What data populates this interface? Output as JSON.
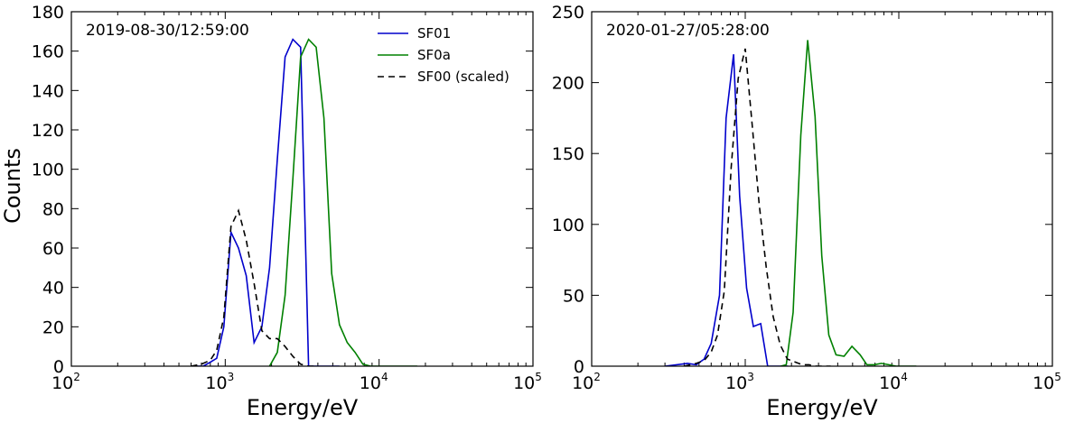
{
  "chart_data": [
    {
      "type": "line",
      "annotation": "2019-08-30/12:59:00",
      "xlabel": "Energy/eV",
      "ylabel": "Counts",
      "xscale": "log",
      "xlim": [
        100,
        100000
      ],
      "ylim": [
        0,
        180
      ],
      "yticks": [
        0,
        20,
        40,
        60,
        80,
        100,
        120,
        140,
        160,
        180
      ],
      "xticks": [
        {
          "value": 100,
          "base": "10",
          "exp": "2"
        },
        {
          "value": 1000,
          "base": "10",
          "exp": "3"
        },
        {
          "value": 10000,
          "base": "10",
          "exp": "4"
        },
        {
          "value": 100000,
          "base": "10",
          "exp": "5"
        }
      ],
      "legend": {
        "position": "top-center"
      },
      "series": [
        {
          "name": "SF01",
          "color": "#0000cc",
          "dash": "solid",
          "x": [
            650,
            720,
            800,
            880,
            980,
            1090,
            1220,
            1370,
            1540,
            1730,
            1940,
            2180,
            2450,
            2750,
            3090,
            3480,
            3900,
            4380,
            4920,
            5530
          ],
          "y": [
            0,
            0,
            2,
            4,
            20,
            68,
            60,
            46,
            12,
            20,
            50,
            105,
            157,
            166,
            162,
            0,
            0,
            0,
            0,
            0
          ]
        },
        {
          "name": "SF0a",
          "color": "#008000",
          "dash": "solid",
          "x": [
            1940,
            2180,
            2450,
            2750,
            3090,
            3480,
            3900,
            4380,
            4920,
            5530,
            6210,
            6980,
            7840,
            8810,
            9900,
            11100,
            12500,
            14000,
            15800,
            17700
          ],
          "y": [
            0,
            7,
            36,
            95,
            157,
            166,
            162,
            126,
            47,
            21,
            12,
            7,
            1,
            0,
            0,
            0,
            0,
            0,
            0,
            0
          ]
        },
        {
          "name": "SF00 (scaled)",
          "color": "#000000",
          "dash": "dashed",
          "x": [
            600,
            700,
            800,
            880,
            980,
            1090,
            1220,
            1370,
            1540,
            1730,
            1940,
            2180,
            2450,
            2750,
            3090,
            3480,
            3900
          ],
          "y": [
            0,
            1,
            3,
            8,
            25,
            71,
            79,
            64,
            42,
            18,
            14,
            14,
            10,
            5,
            1,
            0,
            0
          ]
        }
      ]
    },
    {
      "type": "line",
      "annotation": "2020-01-27/05:28:00",
      "xlabel": "Energy/eV",
      "ylabel": "",
      "xscale": "log",
      "xlim": [
        100,
        100000
      ],
      "ylim": [
        0,
        250
      ],
      "yticks": [
        0,
        50,
        100,
        150,
        200,
        250
      ],
      "xticks": [
        {
          "value": 100,
          "base": "10",
          "exp": "2"
        },
        {
          "value": 1000,
          "base": "10",
          "exp": "3"
        },
        {
          "value": 10000,
          "base": "10",
          "exp": "4"
        },
        {
          "value": 100000,
          "base": "10",
          "exp": "5"
        }
      ],
      "series": [
        {
          "name": "SF01",
          "color": "#0000cc",
          "dash": "solid",
          "x": [
            300,
            420,
            480,
            540,
            600,
            680,
            750,
            840,
            920,
            1020,
            1130,
            1260,
            1400,
            1560,
            1730,
            1900
          ],
          "y": [
            0,
            2,
            1,
            5,
            16,
            50,
            175,
            220,
            120,
            55,
            28,
            30,
            0,
            0,
            0,
            0
          ]
        },
        {
          "name": "SF0a",
          "color": "#008000",
          "dash": "solid",
          "x": [
            1700,
            1850,
            2050,
            2300,
            2550,
            2850,
            3150,
            3500,
            3900,
            4400,
            4950,
            5600,
            6200,
            6900,
            7700,
            8600,
            9600,
            10600,
            11800,
            13000
          ],
          "y": [
            0,
            1,
            38,
            163,
            230,
            176,
            78,
            22,
            8,
            7,
            14,
            8,
            1,
            1,
            2,
            1,
            0,
            0,
            0,
            0
          ]
        },
        {
          "name": "SF00 (scaled)",
          "color": "#000000",
          "dash": "dashed",
          "x": [
            400,
            480,
            540,
            600,
            660,
            730,
            810,
            900,
            1000,
            1110,
            1230,
            1370,
            1520,
            1690,
            1880,
            2100,
            2350,
            2600,
            2900,
            3200,
            3600
          ],
          "y": [
            0,
            2,
            4,
            10,
            22,
            53,
            140,
            203,
            224,
            170,
            115,
            70,
            35,
            15,
            5,
            3,
            1,
            1,
            0,
            0,
            0
          ]
        }
      ]
    }
  ]
}
